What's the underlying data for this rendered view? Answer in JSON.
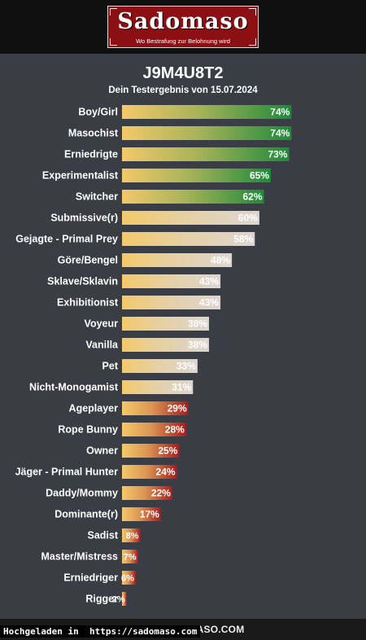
{
  "header": {
    "logo_title": "Sadomaso",
    "logo_tagline": "Wo Bestrafung zur Belohnung wird"
  },
  "result": {
    "id": "J9M4U8T2",
    "date_line": "Dein Testergebnis von 15.07.2024"
  },
  "chart_data": {
    "type": "bar",
    "orientation": "horizontal",
    "unit": "%",
    "xlim": [
      0,
      100
    ],
    "categories": [
      "Boy/Girl",
      "Masochist",
      "Erniedrigte",
      "Experimentalist",
      "Switcher",
      "Submissive(r)",
      "Gejagte - Primal Prey",
      "Göre/Bengel",
      "Sklave/Sklavin",
      "Exhibitionist",
      "Voyeur",
      "Vanilla",
      "Pet",
      "Nicht-Monogamist",
      "Ageplayer",
      "Rope Bunny",
      "Owner",
      "Jäger - Primal Hunter",
      "Daddy/Mommy",
      "Dominante(r)",
      "Sadist",
      "Master/Mistress",
      "Erniedriger",
      "Rigger"
    ],
    "values": [
      74,
      74,
      73,
      65,
      62,
      60,
      58,
      48,
      43,
      43,
      38,
      38,
      33,
      31,
      29,
      28,
      25,
      24,
      22,
      17,
      8,
      7,
      6,
      2
    ],
    "value_labels": [
      "74%",
      "74%",
      "73%",
      "65%",
      "62%",
      "60%",
      "58%",
      "48%",
      "43%",
      "43%",
      "38%",
      "38%",
      "33%",
      "31%",
      "29%",
      "28%",
      "25%",
      "24%",
      "22%",
      "17%",
      "8%",
      "7%",
      "6%",
      "2%"
    ],
    "colors": {
      "gradient_start": "#f3c96a",
      "end_green": "#1e8a3a",
      "end_light": "#dcd6d2",
      "end_red": "#a61d1d"
    }
  },
  "footer": {
    "copyright": "Copyright SADOMASO.COM",
    "upload_note": "Hochgeladen in  https://sadomaso.com"
  }
}
